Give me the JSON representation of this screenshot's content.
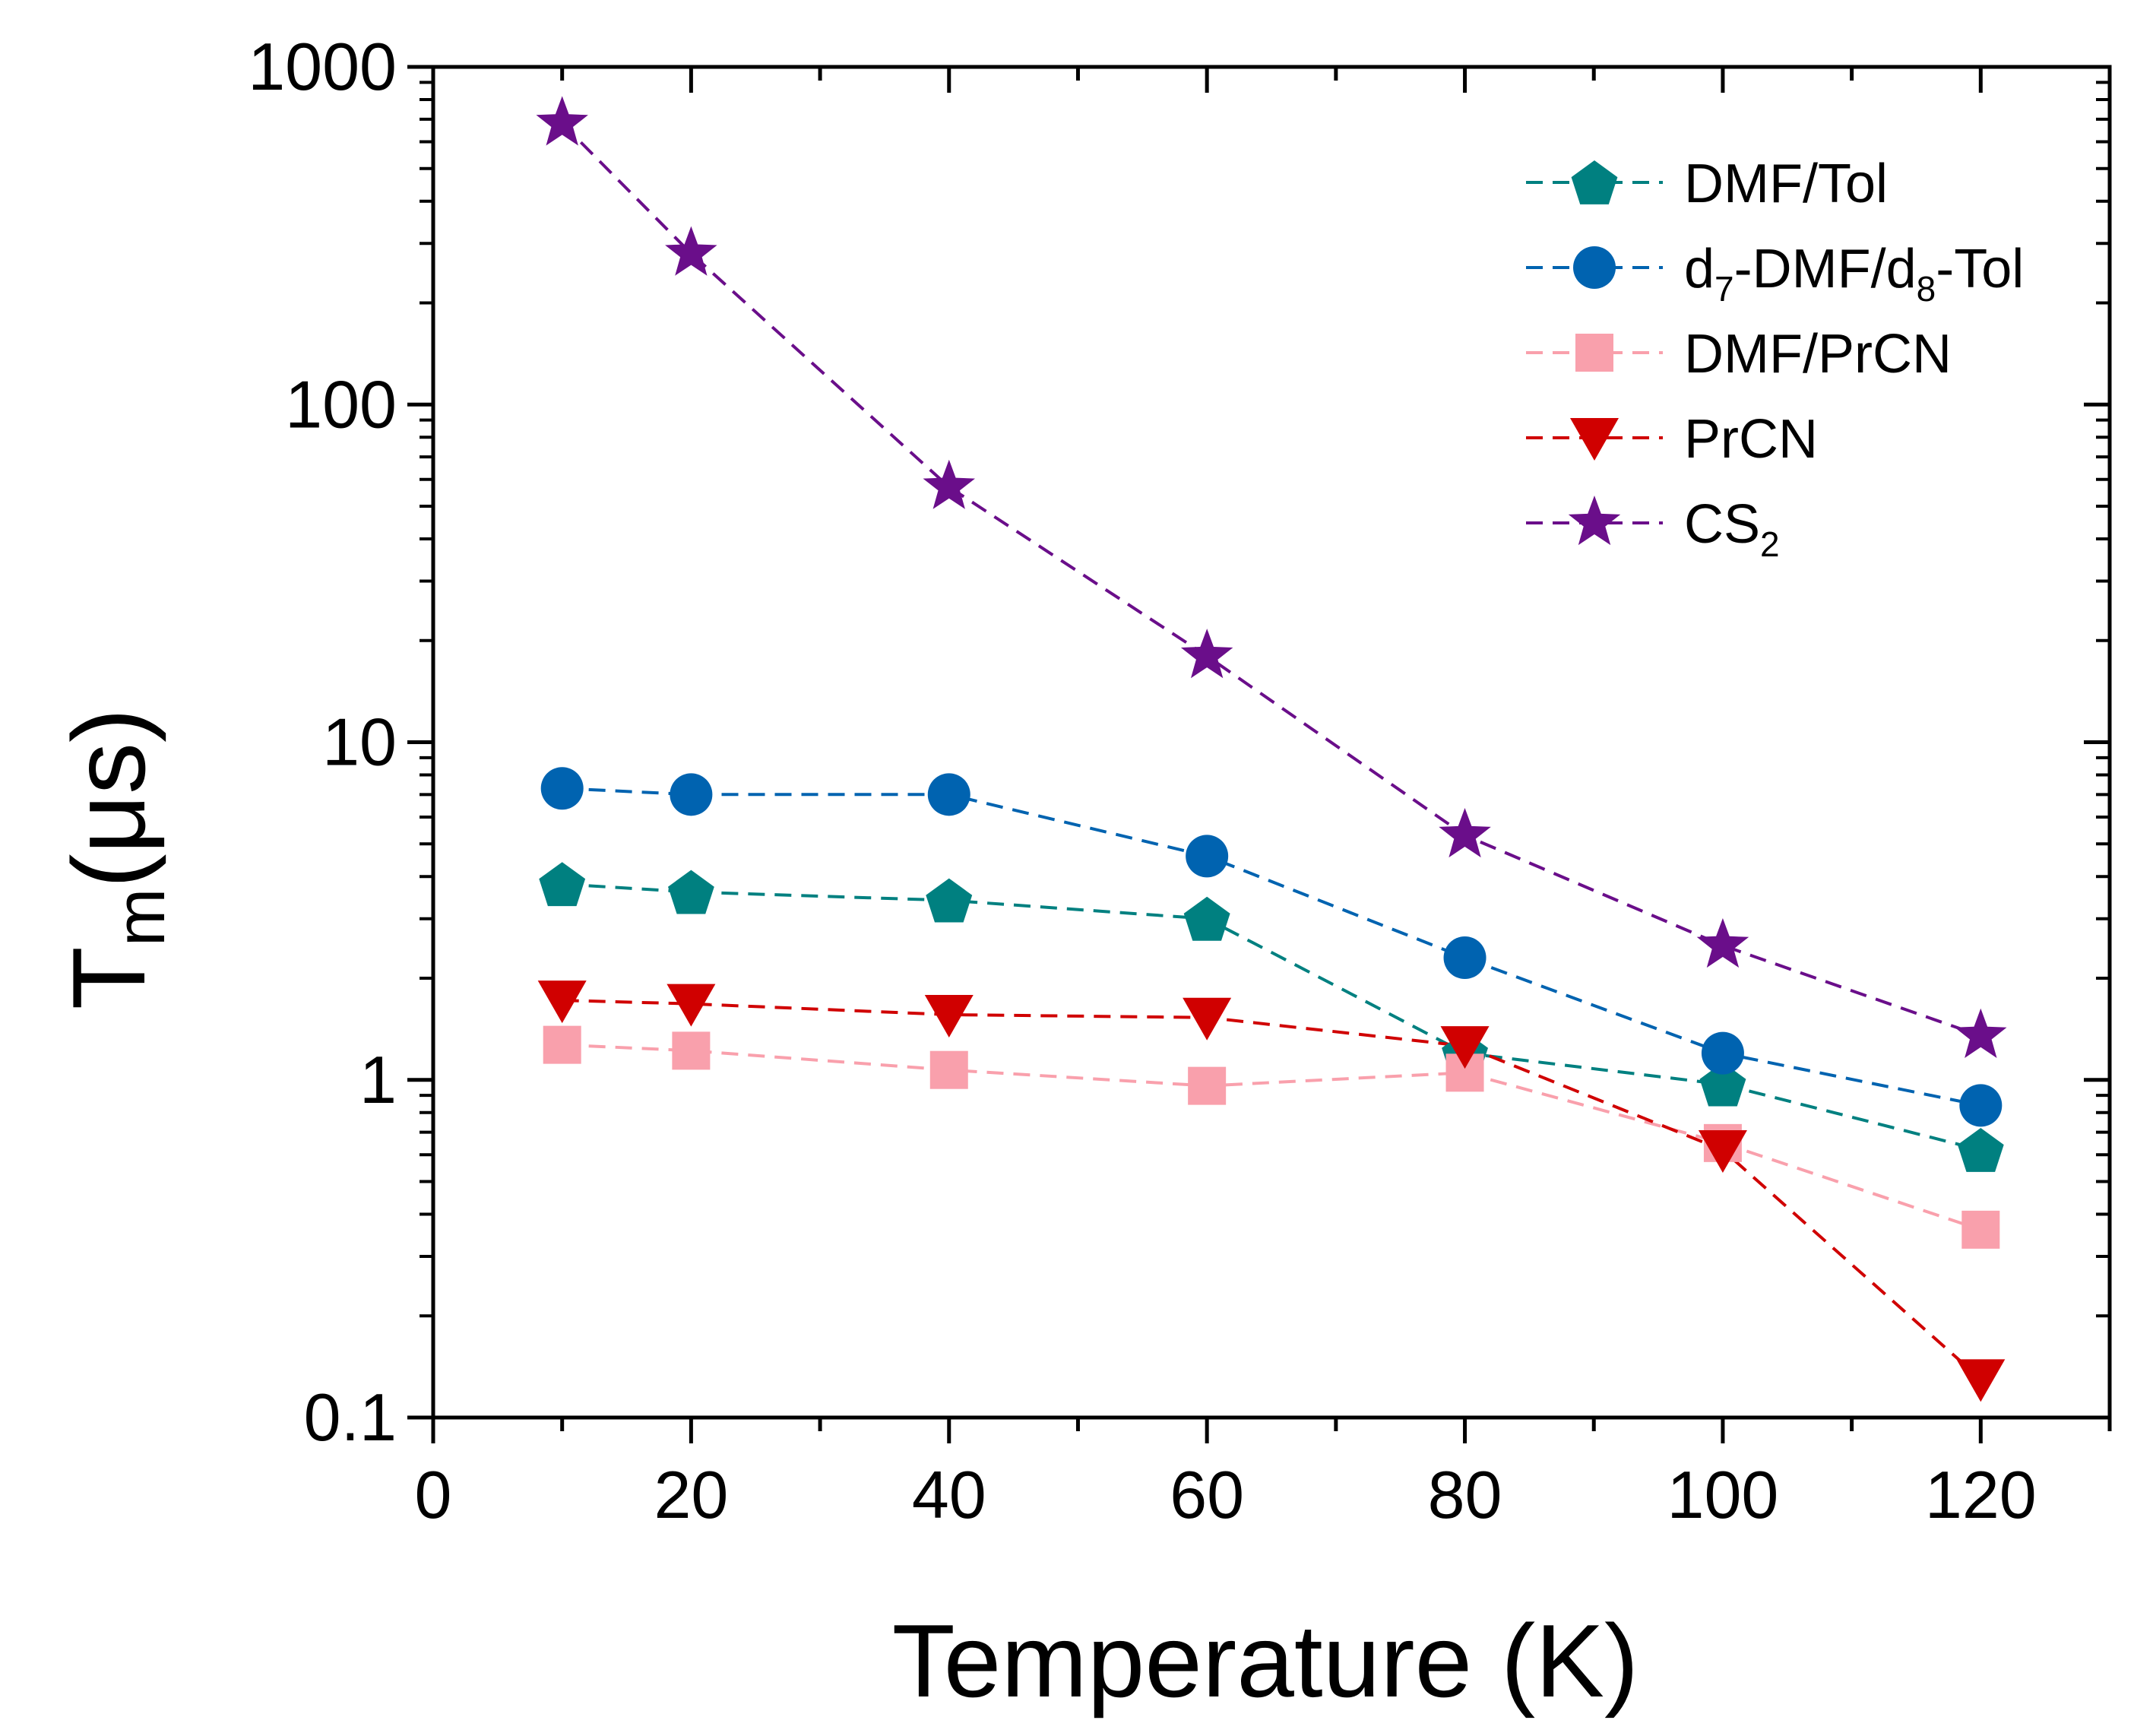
{
  "chart_data": {
    "type": "line",
    "xlabel": "Temperature (K)",
    "ylabel_main": "T",
    "ylabel_sub": "m",
    "ylabel_unit": "(μs)",
    "yscale": "log",
    "xlim": [
      0,
      130
    ],
    "ylim": [
      0.1,
      1000
    ],
    "x_ticks": [
      0,
      20,
      40,
      60,
      80,
      100,
      120
    ],
    "x_minor_ticks": [
      10,
      30,
      50,
      70,
      90,
      110,
      130
    ],
    "y_ticks": [
      0.1,
      1,
      10,
      100,
      1000
    ],
    "y_tick_labels": [
      "0.1",
      "1",
      "10",
      "100",
      "1000"
    ],
    "legend_position": "top-right",
    "series": [
      {
        "name": "DMF/Tol",
        "name_parts": [
          {
            "text": "DMF/Tol",
            "sub": false
          }
        ],
        "marker": "pentagon",
        "color": "#008080",
        "x": [
          10,
          20,
          40,
          60,
          80,
          100,
          120
        ],
        "values": [
          3.8,
          3.6,
          3.4,
          3.0,
          1.2,
          0.97,
          0.62
        ]
      },
      {
        "name": "d7-DMF/d8-Tol",
        "name_parts": [
          {
            "text": "d",
            "sub": false
          },
          {
            "text": "7",
            "sub": true
          },
          {
            "text": "-DMF/d",
            "sub": false
          },
          {
            "text": "8",
            "sub": true
          },
          {
            "text": "-Tol",
            "sub": false
          }
        ],
        "marker": "circle",
        "color": "#0063B0",
        "x": [
          10,
          20,
          40,
          60,
          80,
          100,
          120
        ],
        "values": [
          7.3,
          7.0,
          7.0,
          4.6,
          2.3,
          1.2,
          0.84
        ]
      },
      {
        "name": "DMF/PrCN",
        "name_parts": [
          {
            "text": "DMF/PrCN",
            "sub": false
          }
        ],
        "marker": "square",
        "color": "#F9A0AC",
        "x": [
          10,
          20,
          40,
          60,
          80,
          100,
          120
        ],
        "values": [
          1.27,
          1.22,
          1.07,
          0.96,
          1.05,
          0.65,
          0.36
        ]
      },
      {
        "name": "PrCN",
        "name_parts": [
          {
            "text": "PrCN",
            "sub": false
          }
        ],
        "marker": "triangle-down",
        "color": "#D00000",
        "x": [
          10,
          20,
          40,
          60,
          80,
          100,
          120
        ],
        "values": [
          1.72,
          1.68,
          1.56,
          1.53,
          1.26,
          0.62,
          0.13
        ]
      },
      {
        "name": "CS2",
        "name_parts": [
          {
            "text": "CS",
            "sub": false
          },
          {
            "text": "2",
            "sub": true
          }
        ],
        "marker": "star",
        "color": "#6A0E8A",
        "x": [
          10,
          20,
          40,
          60,
          80,
          100,
          120
        ],
        "values": [
          680,
          280,
          57,
          18,
          5.3,
          2.5,
          1.35
        ]
      }
    ]
  }
}
